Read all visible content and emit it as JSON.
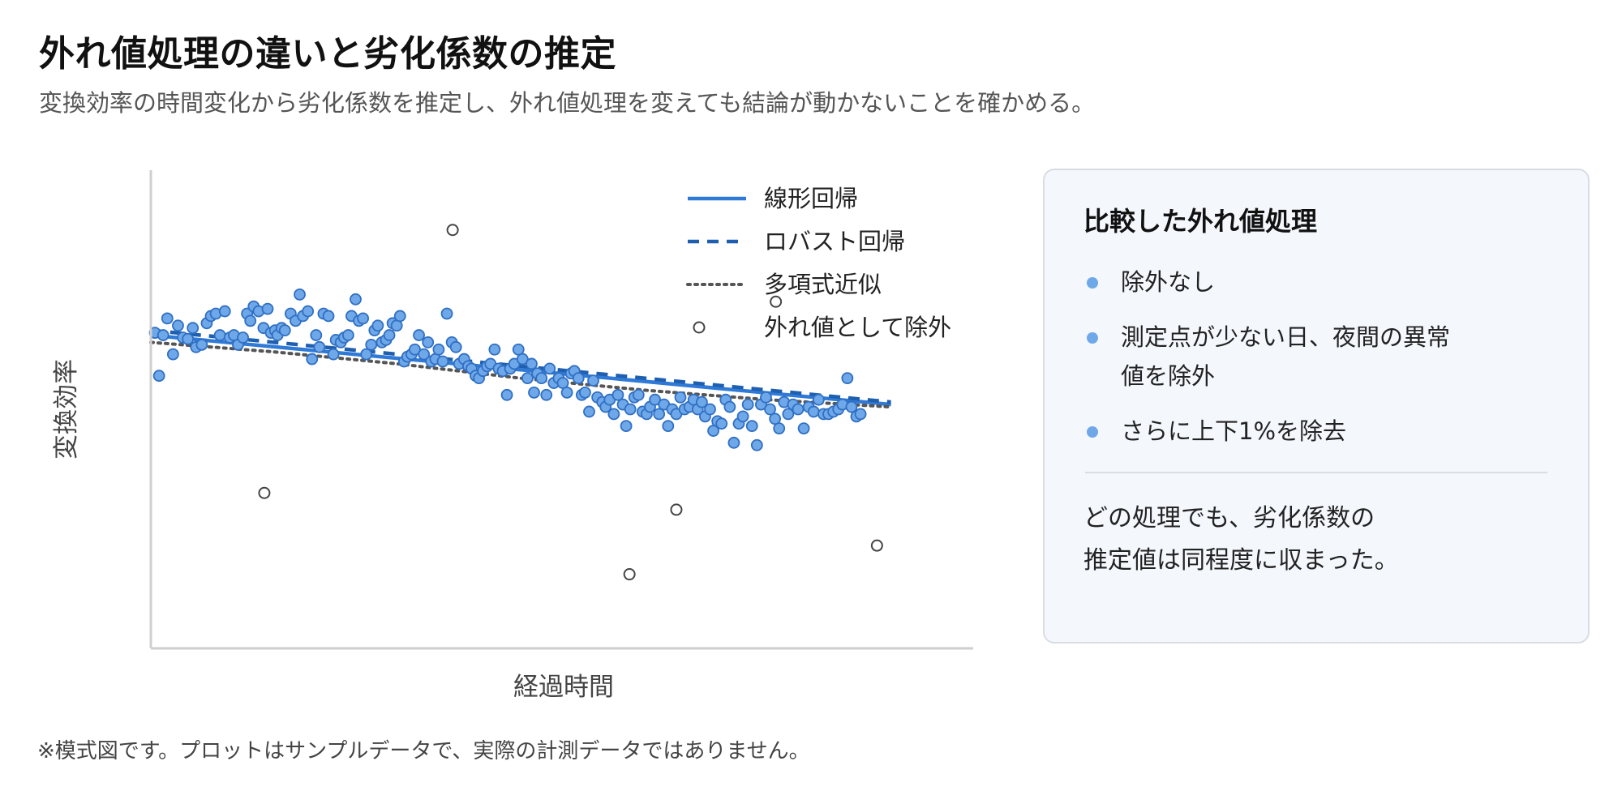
{
  "title": "外れ値処理の違いと劣化係数の推定",
  "subtitle": "変換効率の時間変化から劣化係数を推定し、外れ値処理を変えても結論が動かないことを確かめる。",
  "colors": {
    "point_fill": "#6fa8e8",
    "point_stroke": "#2f6fc4",
    "linear": "#2f7ad6",
    "robust": "#1f5fb0",
    "poly": "#555555",
    "outlier_stroke": "#444444"
  },
  "chart_data": {
    "type": "scatter",
    "xlabel": "経過時間",
    "ylabel": "変換効率",
    "xlim": [
      0,
      100
    ],
    "ylim": [
      0,
      100
    ],
    "grid": false,
    "axis_ticks_labeled": false,
    "legend_position": "top-right",
    "legend": {
      "linear": "線形回帰",
      "robust": "ロバスト回帰",
      "poly": "多項式近似",
      "outlier": "外れ値として除外"
    },
    "series": [
      {
        "kind": "points",
        "points": [
          [
            0.5,
            66.0
          ],
          [
            1.0,
            57.0
          ],
          [
            1.5,
            65.5
          ],
          [
            2.0,
            69.0
          ],
          [
            2.7,
            61.5
          ],
          [
            3.3,
            67.5
          ],
          [
            3.9,
            65.0
          ],
          [
            4.5,
            64.7
          ],
          [
            5.1,
            67.0
          ],
          [
            5.5,
            63.0
          ],
          [
            6.2,
            63.5
          ],
          [
            6.8,
            68.0
          ],
          [
            7.3,
            69.5
          ],
          [
            7.9,
            70.0
          ],
          [
            8.4,
            65.5
          ],
          [
            9.0,
            70.5
          ],
          [
            9.6,
            65.0
          ],
          [
            10.1,
            65.5
          ],
          [
            10.6,
            63.5
          ],
          [
            11.2,
            65.0
          ],
          [
            11.7,
            70.0
          ],
          [
            12.1,
            68.5
          ],
          [
            12.5,
            71.5
          ],
          [
            13.1,
            70.5
          ],
          [
            13.7,
            67.0
          ],
          [
            14.2,
            71.0
          ],
          [
            14.6,
            66.0
          ],
          [
            15.1,
            66.5
          ],
          [
            15.4,
            65.5
          ],
          [
            15.9,
            67.0
          ],
          [
            16.3,
            66.5
          ],
          [
            17.0,
            70.0
          ],
          [
            17.6,
            68.5
          ],
          [
            18.1,
            74.0
          ],
          [
            18.5,
            69.5
          ],
          [
            19.1,
            70.5
          ],
          [
            19.6,
            60.5
          ],
          [
            20.1,
            65.5
          ],
          [
            20.5,
            63.0
          ],
          [
            21.0,
            70.0
          ],
          [
            21.6,
            69.5
          ],
          [
            22.2,
            61.5
          ],
          [
            22.5,
            64.5
          ],
          [
            23.1,
            64.0
          ],
          [
            23.5,
            65.0
          ],
          [
            24.0,
            65.5
          ],
          [
            24.4,
            69.5
          ],
          [
            24.9,
            73.0
          ],
          [
            25.3,
            68.5
          ],
          [
            25.8,
            69.0
          ],
          [
            26.2,
            61.5
          ],
          [
            26.8,
            63.5
          ],
          [
            27.2,
            66.5
          ],
          [
            27.6,
            67.5
          ],
          [
            28.1,
            64.0
          ],
          [
            28.6,
            64.5
          ],
          [
            29.0,
            65.5
          ],
          [
            29.4,
            68.0
          ],
          [
            29.9,
            67.5
          ],
          [
            30.3,
            69.5
          ],
          [
            30.8,
            60.0
          ],
          [
            31.2,
            61.0
          ],
          [
            31.7,
            61.5
          ],
          [
            32.1,
            62.5
          ],
          [
            32.6,
            65.5
          ],
          [
            33.2,
            61.5
          ],
          [
            33.7,
            64.0
          ],
          [
            34.1,
            60.0
          ],
          [
            34.6,
            60.5
          ],
          [
            35.0,
            62.5
          ],
          [
            35.5,
            60.0
          ],
          [
            36.0,
            70.0
          ],
          [
            36.6,
            64.0
          ],
          [
            37.1,
            63.0
          ],
          [
            37.5,
            59.5
          ],
          [
            38.1,
            60.5
          ],
          [
            38.6,
            59.0
          ],
          [
            39.0,
            58.5
          ],
          [
            39.5,
            57.0
          ],
          [
            39.9,
            56.5
          ],
          [
            40.4,
            58.0
          ],
          [
            40.9,
            59.0
          ],
          [
            41.3,
            59.5
          ],
          [
            41.8,
            62.5
          ],
          [
            42.3,
            58.5
          ],
          [
            42.8,
            58.0
          ],
          [
            43.3,
            53.0
          ],
          [
            43.7,
            58.5
          ],
          [
            44.2,
            59.5
          ],
          [
            44.7,
            62.5
          ],
          [
            45.2,
            60.5
          ],
          [
            45.8,
            56.5
          ],
          [
            46.3,
            59.5
          ],
          [
            46.6,
            53.5
          ],
          [
            47.0,
            57.5
          ],
          [
            47.5,
            56.5
          ],
          [
            48.1,
            53.0
          ],
          [
            48.5,
            58.5
          ],
          [
            49.0,
            55.5
          ],
          [
            49.6,
            56.5
          ],
          [
            50.1,
            55.5
          ],
          [
            50.6,
            53.5
          ],
          [
            51.1,
            57.5
          ],
          [
            51.5,
            58.0
          ],
          [
            52.0,
            56.5
          ],
          [
            52.4,
            53.0
          ],
          [
            52.8,
            53.5
          ],
          [
            53.3,
            49.5
          ],
          [
            53.8,
            56.0
          ],
          [
            54.3,
            52.5
          ],
          [
            54.9,
            51.5
          ],
          [
            55.3,
            50.5
          ],
          [
            55.8,
            52.0
          ],
          [
            56.3,
            49.0
          ],
          [
            56.8,
            53.0
          ],
          [
            57.4,
            51.0
          ],
          [
            57.8,
            46.5
          ],
          [
            58.3,
            50.0
          ],
          [
            58.8,
            52.5
          ],
          [
            59.3,
            53.0
          ],
          [
            59.8,
            49.5
          ],
          [
            60.3,
            49.0
          ],
          [
            60.7,
            50.5
          ],
          [
            61.3,
            52.0
          ],
          [
            61.8,
            49.0
          ],
          [
            62.4,
            51.0
          ],
          [
            62.9,
            46.5
          ],
          [
            63.4,
            50.0
          ],
          [
            63.9,
            49.0
          ],
          [
            64.4,
            52.5
          ],
          [
            64.9,
            50.0
          ],
          [
            65.5,
            50.5
          ],
          [
            66.0,
            52.0
          ],
          [
            66.5,
            50.0
          ],
          [
            67.0,
            51.5
          ],
          [
            67.4,
            48.5
          ],
          [
            68.0,
            50.0
          ],
          [
            68.4,
            45.5
          ],
          [
            68.9,
            47.5
          ],
          [
            69.4,
            47.0
          ],
          [
            69.9,
            52.0
          ],
          [
            70.4,
            50.5
          ],
          [
            70.9,
            43.0
          ],
          [
            71.5,
            47.0
          ],
          [
            72.0,
            48.5
          ],
          [
            72.6,
            51.0
          ],
          [
            73.1,
            46.5
          ],
          [
            73.7,
            42.5
          ],
          [
            74.2,
            51.0
          ],
          [
            74.8,
            52.5
          ],
          [
            75.3,
            50.0
          ],
          [
            75.9,
            48.0
          ],
          [
            76.4,
            46.0
          ],
          [
            77.0,
            51.5
          ],
          [
            77.5,
            49.0
          ],
          [
            78.1,
            51.0
          ],
          [
            78.7,
            50.0
          ],
          [
            79.4,
            46.0
          ],
          [
            80.0,
            50.5
          ],
          [
            80.6,
            49.5
          ],
          [
            81.2,
            52.0
          ],
          [
            81.8,
            49.0
          ],
          [
            82.4,
            49.0
          ],
          [
            83.0,
            49.5
          ],
          [
            83.6,
            50.0
          ],
          [
            84.1,
            51.0
          ],
          [
            84.7,
            56.5
          ],
          [
            85.2,
            50.5
          ],
          [
            85.8,
            48.5
          ],
          [
            86.3,
            49.0
          ]
        ]
      },
      {
        "kind": "outliers",
        "name": "外れ値として除外",
        "points": [
          [
            36.7,
            87.5
          ],
          [
            13.8,
            32.5
          ],
          [
            58.2,
            15.5
          ],
          [
            76.0,
            72.5
          ],
          [
            88.3,
            21.5
          ],
          [
            63.9,
            29.0
          ]
        ]
      },
      {
        "kind": "line",
        "name": "線形回帰",
        "points": [
          [
            0.0,
            65.5
          ],
          [
            90.0,
            51.0
          ]
        ]
      },
      {
        "kind": "line",
        "name": "ロバスト回帰",
        "points": [
          [
            0.0,
            66.5
          ],
          [
            90.0,
            51.5
          ]
        ]
      },
      {
        "kind": "line",
        "name": "多項式近似",
        "points": [
          [
            0.0,
            64.0
          ],
          [
            15.0,
            62.0
          ],
          [
            30.0,
            59.5
          ],
          [
            45.0,
            56.5
          ],
          [
            60.0,
            54.0
          ],
          [
            75.0,
            52.0
          ],
          [
            90.0,
            50.5
          ]
        ]
      }
    ]
  },
  "panel": {
    "title": "比較した外れ値処理",
    "items": [
      "除外なし",
      "測定点が少ない日、夜間の異常\n値を除外",
      "さらに上下1%を除去"
    ],
    "note": "どの処理でも、劣化係数の\n推定値は同程度に収まった。"
  },
  "footnote": "※模式図です。プロットはサンプルデータで、実際の計測データではありません。"
}
